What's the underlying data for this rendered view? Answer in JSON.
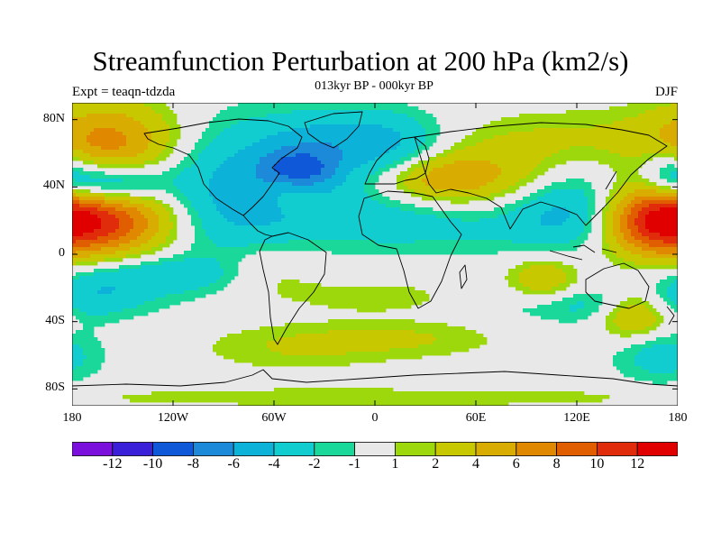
{
  "title": "Streamfunction Perturbation at 200 hPa (km2/s)",
  "subtitle": "013kyr BP - 000kyr BP",
  "expt_label": "Expt = teaqn-tdzda",
  "season": "DJF",
  "map": {
    "lon_range": [
      -180,
      180
    ],
    "lat_range": [
      -90,
      90
    ],
    "lat_ticks": [
      {
        "v": 80,
        "label": "80N"
      },
      {
        "v": 40,
        "label": "40N"
      },
      {
        "v": 0,
        "label": "0"
      },
      {
        "v": -40,
        "label": "40S"
      },
      {
        "v": -80,
        "label": "80S"
      }
    ],
    "lon_ticks": [
      {
        "v": -180,
        "label": "180"
      },
      {
        "v": -120,
        "label": "120W"
      },
      {
        "v": -60,
        "label": "60W"
      },
      {
        "v": 0,
        "label": "0"
      },
      {
        "v": 60,
        "label": "60E"
      },
      {
        "v": 120,
        "label": "120E"
      },
      {
        "v": 180,
        "label": "180"
      }
    ],
    "background_color": "#e8e8e8",
    "features": [
      {
        "lon": -155,
        "lat": 65,
        "amp": 7,
        "rx": 30,
        "ry": 18
      },
      {
        "lon": -155,
        "lat": 20,
        "amp": 10,
        "rx": 30,
        "ry": 15
      },
      {
        "lon": -160,
        "lat": 42,
        "amp": -8,
        "rx": 22,
        "ry": 9
      },
      {
        "lon": -165,
        "lat": -23,
        "amp": -3,
        "rx": 25,
        "ry": 10
      },
      {
        "lon": -90,
        "lat": 35,
        "amp": -5,
        "rx": 40,
        "ry": 30
      },
      {
        "lon": -50,
        "lat": 38,
        "amp": 2,
        "rx": 12,
        "ry": 8
      },
      {
        "lon": -30,
        "lat": 55,
        "amp": -3,
        "rx": 30,
        "ry": 15
      },
      {
        "lon": -10,
        "lat": 72,
        "amp": -3,
        "rx": 35,
        "ry": 12
      },
      {
        "lon": -45,
        "lat": 50,
        "amp": -5,
        "rx": 15,
        "ry": 8
      },
      {
        "lon": 15,
        "lat": 55,
        "amp": -3,
        "rx": 20,
        "ry": 15
      },
      {
        "lon": 30,
        "lat": 45,
        "amp": 5,
        "rx": 25,
        "ry": 10
      },
      {
        "lon": 75,
        "lat": 45,
        "amp": 4,
        "rx": 40,
        "ry": 15
      },
      {
        "lon": 120,
        "lat": 70,
        "amp": 2,
        "rx": 50,
        "ry": 12
      },
      {
        "lon": 115,
        "lat": 30,
        "amp": -5,
        "rx": 25,
        "ry": 18
      },
      {
        "lon": 165,
        "lat": 20,
        "amp": 10,
        "rx": 22,
        "ry": 15
      },
      {
        "lon": 175,
        "lat": 50,
        "amp": -4,
        "rx": 12,
        "ry": 10
      },
      {
        "lon": 30,
        "lat": 20,
        "amp": -3,
        "rx": 60,
        "ry": 14
      },
      {
        "lon": -65,
        "lat": -10,
        "amp": 3,
        "rx": 25,
        "ry": 12
      },
      {
        "lon": 0,
        "lat": -25,
        "amp": 2,
        "rx": 30,
        "ry": 6
      },
      {
        "lon": 100,
        "lat": -15,
        "amp": 4,
        "rx": 15,
        "ry": 10
      },
      {
        "lon": 155,
        "lat": -35,
        "amp": 6,
        "rx": 15,
        "ry": 10
      },
      {
        "lon": 130,
        "lat": -30,
        "amp": -3,
        "rx": 40,
        "ry": 8
      },
      {
        "lon": -120,
        "lat": -12,
        "amp": -3,
        "rx": 40,
        "ry": 8
      },
      {
        "lon": -50,
        "lat": -55,
        "amp": 2,
        "rx": 40,
        "ry": 10
      },
      {
        "lon": 20,
        "lat": -50,
        "amp": 2,
        "rx": 40,
        "ry": 8
      },
      {
        "lon": 170,
        "lat": -60,
        "amp": -3,
        "rx": 20,
        "ry": 12
      },
      {
        "lon": 0,
        "lat": -85,
        "amp": 1.5,
        "rx": 180,
        "ry": 5
      }
    ]
  },
  "colorbar": {
    "colors": [
      "#7b10dc",
      "#3a20d8",
      "#0f58d8",
      "#1c8ad8",
      "#0cb2d8",
      "#12cdd0",
      "#1ad89a",
      "#e8e8e8",
      "#9cd80c",
      "#c8c800",
      "#d8ac00",
      "#e08800",
      "#e05e00",
      "#e02c0a",
      "#e00000"
    ],
    "labels": [
      {
        "after": 1,
        "text": "-12"
      },
      {
        "after": 2,
        "text": "-10"
      },
      {
        "after": 3,
        "text": "-8"
      },
      {
        "after": 4,
        "text": "-6"
      },
      {
        "after": 5,
        "text": "-4"
      },
      {
        "after": 6,
        "text": "-2"
      },
      {
        "after": 7,
        "text": "-1"
      },
      {
        "after": 8,
        "text": "1"
      },
      {
        "after": 9,
        "text": "2"
      },
      {
        "after": 10,
        "text": "4"
      },
      {
        "after": 11,
        "text": "6"
      },
      {
        "after": 12,
        "text": "8"
      },
      {
        "after": 13,
        "text": "10"
      },
      {
        "after": 14,
        "text": "12"
      }
    ],
    "levels": [
      -12,
      -10,
      -8,
      -6,
      -4,
      -2,
      -1,
      1,
      2,
      4,
      6,
      8,
      10,
      12
    ]
  }
}
